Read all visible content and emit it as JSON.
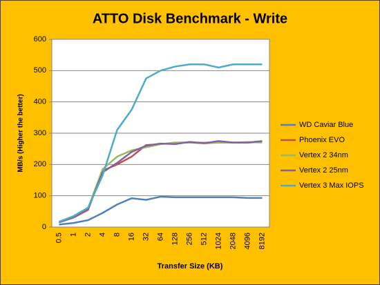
{
  "chart_data": {
    "type": "line",
    "title": "ATTO Disk Benchmark - Write",
    "x_label": "Transfer Size (KB)",
    "y_label": "MB/s (Higher the better)",
    "categories": [
      "0.5",
      "1",
      "2",
      "4",
      "8",
      "16",
      "32",
      "64",
      "128",
      "256",
      "512",
      "1024",
      "2048",
      "4096",
      "8192"
    ],
    "series": [
      {
        "name": "WD Caviar  Blue",
        "color": "#4f81bd",
        "values": [
          8,
          13,
          22,
          45,
          72,
          92,
          87,
          97,
          95,
          95,
          95,
          95,
          95,
          93,
          93
        ]
      },
      {
        "name": "Phoenix EVO",
        "color": "#c0504d",
        "values": [
          15,
          30,
          55,
          180,
          200,
          225,
          262,
          265,
          270,
          270,
          268,
          270,
          270,
          270,
          272
        ]
      },
      {
        "name": "Vertex 2 34nm",
        "color": "#9bbb59",
        "values": [
          15,
          32,
          60,
          185,
          225,
          245,
          255,
          265,
          270,
          270,
          270,
          270,
          270,
          272,
          270
        ]
      },
      {
        "name": "Vertex 2 25nm",
        "color": "#8064a2",
        "values": [
          15,
          32,
          58,
          175,
          205,
          240,
          260,
          267,
          265,
          272,
          268,
          275,
          270,
          270,
          275
        ]
      },
      {
        "name": "Vertex 3 Max IOPS",
        "color": "#4bacc6",
        "values": [
          17,
          35,
          62,
          165,
          310,
          375,
          475,
          500,
          513,
          520,
          520,
          510,
          520,
          520,
          520
        ]
      }
    ],
    "ylim": [
      0,
      600
    ],
    "yticks": [
      0,
      100,
      200,
      300,
      400,
      500,
      600
    ],
    "grid": true,
    "legend": "right"
  }
}
